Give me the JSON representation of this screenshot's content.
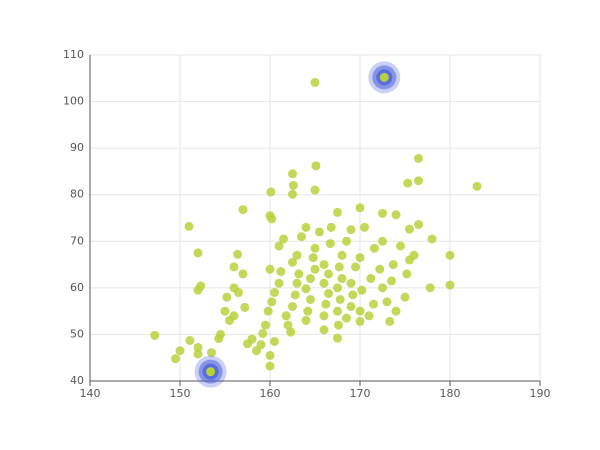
{
  "chart_data": {
    "type": "scatter",
    "xlim": [
      140,
      190
    ],
    "xticks": [
      140,
      150,
      160,
      170,
      180,
      190
    ],
    "ylim": [
      40,
      110
    ],
    "yticks": [
      40,
      50,
      60,
      70,
      80,
      90,
      100,
      110
    ],
    "grid": true,
    "series": [
      {
        "color": "#b7d13c",
        "values": [
          [
            147.2,
            49.8
          ],
          [
            149.5,
            44.8
          ],
          [
            150,
            46.5
          ],
          [
            151.1,
            48.7
          ],
          [
            152,
            47.2
          ],
          [
            152,
            45.8
          ],
          [
            153.5,
            46.1
          ],
          [
            154.3,
            49.1
          ],
          [
            154.5,
            50
          ],
          [
            152,
            59.5
          ],
          [
            152.3,
            60.4
          ],
          [
            151,
            73.2
          ],
          [
            152,
            67.5
          ],
          [
            155,
            55
          ],
          [
            155.2,
            58
          ],
          [
            156,
            60
          ],
          [
            156.5,
            59
          ],
          [
            157,
            63
          ],
          [
            156,
            64.5
          ],
          [
            156.4,
            67.2
          ],
          [
            155.5,
            53
          ],
          [
            156,
            54
          ],
          [
            157.2,
            55.8
          ],
          [
            157.5,
            48
          ],
          [
            158,
            49
          ],
          [
            158.5,
            46.5
          ],
          [
            159,
            47.8
          ],
          [
            159.2,
            50.2
          ],
          [
            159.5,
            52
          ],
          [
            160,
            43.2
          ],
          [
            160,
            45.5
          ],
          [
            160.5,
            48.5
          ],
          [
            159.8,
            55
          ],
          [
            160.2,
            57
          ],
          [
            160.5,
            59
          ],
          [
            161,
            61
          ],
          [
            160,
            64
          ],
          [
            161.2,
            63.5
          ],
          [
            161,
            69
          ],
          [
            161.5,
            70.5
          ],
          [
            157,
            76.8
          ],
          [
            160,
            75.5
          ],
          [
            160.2,
            74.8
          ],
          [
            160.1,
            80.6
          ],
          [
            162.5,
            80.1
          ],
          [
            162.6,
            82
          ],
          [
            162.5,
            84.5
          ],
          [
            165,
            81
          ],
          [
            165.1,
            86.2
          ],
          [
            165,
            104.1
          ],
          [
            161.8,
            54
          ],
          [
            162,
            52
          ],
          [
            162.3,
            50.5
          ],
          [
            162.5,
            56
          ],
          [
            162.8,
            58.5
          ],
          [
            163,
            61
          ],
          [
            163.2,
            63
          ],
          [
            162.5,
            65.5
          ],
          [
            163,
            67
          ],
          [
            163.5,
            71
          ],
          [
            164,
            53
          ],
          [
            164.2,
            55
          ],
          [
            164.5,
            57.5
          ],
          [
            164,
            59.8
          ],
          [
            164.5,
            62
          ],
          [
            165,
            64
          ],
          [
            164.8,
            66.5
          ],
          [
            165,
            68.5
          ],
          [
            165.5,
            72
          ],
          [
            164,
            73
          ],
          [
            166,
            51
          ],
          [
            166,
            54
          ],
          [
            166.2,
            56.5
          ],
          [
            166.5,
            58.8
          ],
          [
            166,
            61
          ],
          [
            166.5,
            63
          ],
          [
            166,
            65
          ],
          [
            166.7,
            69.5
          ],
          [
            167.5,
            76.2
          ],
          [
            166.8,
            73
          ],
          [
            167.5,
            49.2
          ],
          [
            167.6,
            52
          ],
          [
            167.5,
            55
          ],
          [
            167.8,
            57.5
          ],
          [
            167.5,
            60
          ],
          [
            168,
            62
          ],
          [
            167.7,
            64.5
          ],
          [
            168,
            67
          ],
          [
            168.5,
            70
          ],
          [
            169,
            72.5
          ],
          [
            168.5,
            53.5
          ],
          [
            169,
            56
          ],
          [
            169.2,
            58.5
          ],
          [
            169,
            61
          ],
          [
            169.5,
            64.5
          ],
          [
            170,
            52.8
          ],
          [
            170,
            55
          ],
          [
            170.2,
            59.5
          ],
          [
            170,
            66.5
          ],
          [
            170,
            77.2
          ],
          [
            170.5,
            73
          ],
          [
            171,
            54
          ],
          [
            171.5,
            56.5
          ],
          [
            171.2,
            62
          ],
          [
            171.6,
            68.5
          ],
          [
            172.5,
            76
          ],
          [
            172.5,
            70
          ],
          [
            172.2,
            64
          ],
          [
            172.5,
            60
          ],
          [
            173.3,
            52.8
          ],
          [
            173,
            57
          ],
          [
            173.5,
            61.5
          ],
          [
            173.7,
            65
          ],
          [
            174,
            55
          ],
          [
            174,
            75.7
          ],
          [
            174.5,
            69
          ],
          [
            175,
            58
          ],
          [
            175.3,
            82.5
          ],
          [
            175.5,
            72.6
          ],
          [
            175.5,
            66
          ],
          [
            175.2,
            63
          ],
          [
            176,
            67
          ],
          [
            176.5,
            73.6
          ],
          [
            176.5,
            83
          ],
          [
            176.5,
            87.8
          ],
          [
            177.8,
            60
          ],
          [
            178,
            70.5
          ],
          [
            180,
            67
          ],
          [
            180,
            60.6
          ],
          [
            183,
            81.8
          ]
        ]
      },
      {
        "color": "#4d63db",
        "values": [
          [
            172.7,
            105.2
          ],
          [
            153.4,
            42
          ]
        ]
      }
    ]
  }
}
